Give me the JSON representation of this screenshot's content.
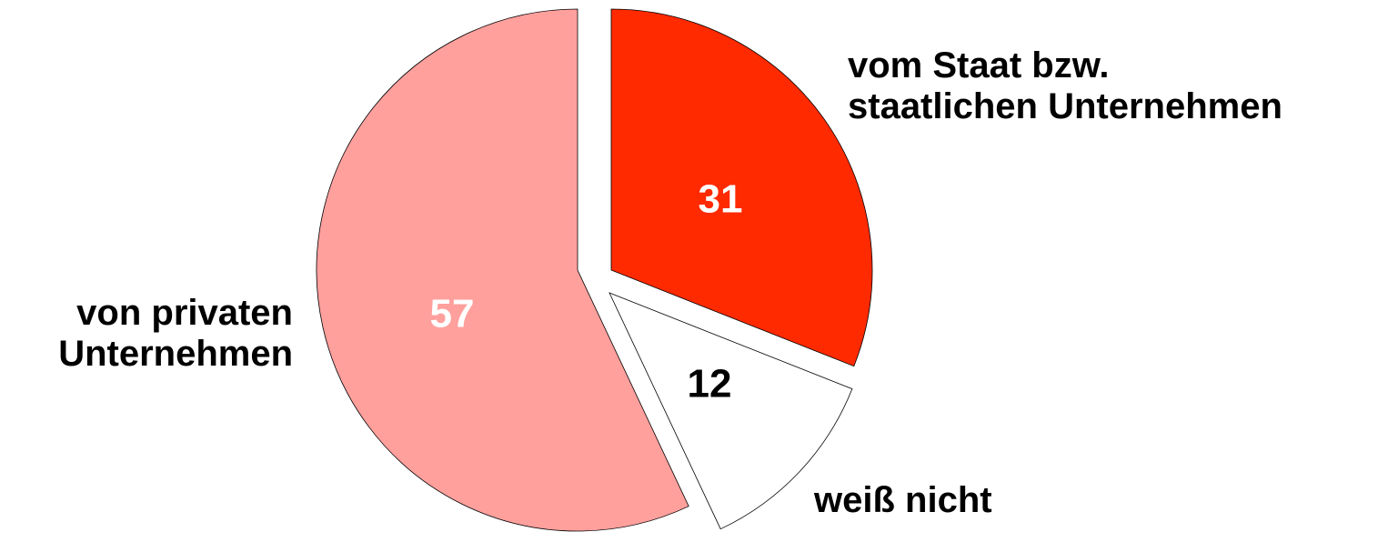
{
  "chart_data": {
    "type": "pie",
    "categories": [
      "vom Staat bzw.\nstaatlichen Unternehmen",
      "weiß nicht",
      "von privaten\nUnternehmen"
    ],
    "values": [
      31,
      12,
      57
    ],
    "colors": [
      "#ff2a00",
      "#ffffff",
      "#ffa09d"
    ]
  }
}
